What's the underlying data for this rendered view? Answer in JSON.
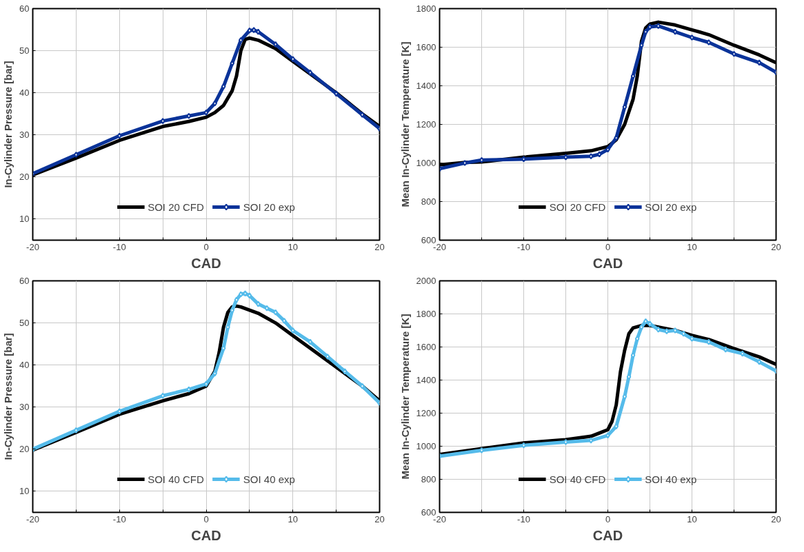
{
  "chart_data": [
    {
      "type": "line",
      "xlabel": "CAD",
      "ylabel": "In-Cylinder Pressure [bar]",
      "xlim": [
        -20,
        20
      ],
      "ylim": [
        5,
        60
      ],
      "xticks": [
        -20,
        {
          "value": -15,
          "label": null
        },
        -10,
        {
          "value": -5,
          "label": null
        },
        0,
        {
          "value": 5,
          "label": null
        },
        10,
        {
          "value": 15,
          "label": null
        },
        20
      ],
      "yticks": [
        10,
        20,
        30,
        40,
        50,
        60
      ],
      "grid": true,
      "legend": "bottom",
      "line_style": "solid",
      "series": [
        {
          "name": "SOI 20 CFD",
          "color": "#000000",
          "marker": "none",
          "x": [
            -20,
            -15,
            -10,
            -5,
            -2,
            0,
            1,
            2,
            3,
            3.5,
            4,
            4.5,
            5,
            6,
            8,
            10,
            12,
            15,
            18,
            20
          ],
          "values": [
            20.5,
            24.5,
            28.7,
            32,
            33.2,
            34.2,
            35.3,
            37,
            40.5,
            44,
            50,
            52.7,
            53,
            52.5,
            50.5,
            47.5,
            44.5,
            40,
            35,
            32
          ]
        },
        {
          "name": "SOI 20 exp",
          "color": "#0a3399",
          "marker": "diamond",
          "x": [
            -20,
            -15,
            -10,
            -5,
            -2,
            0,
            1,
            2,
            3,
            4,
            5,
            5.5,
            6,
            8,
            10,
            12,
            15,
            18,
            20
          ],
          "values": [
            20.8,
            25.3,
            29.8,
            33.3,
            34.5,
            35.3,
            37.5,
            41.5,
            47,
            52.5,
            54.8,
            54.9,
            54.5,
            51.5,
            48,
            44.8,
            39.8,
            34.8,
            31.5
          ]
        }
      ]
    },
    {
      "type": "line",
      "xlabel": "CAD",
      "ylabel": "Mean In-Cylinder Temperature [K]",
      "xlim": [
        -20,
        20
      ],
      "ylim": [
        600,
        1800
      ],
      "xticks": [
        -20,
        {
          "value": -15,
          "label": null
        },
        -10,
        {
          "value": -5,
          "label": null
        },
        0,
        {
          "value": 5,
          "label": null
        },
        10,
        {
          "value": 15,
          "label": null
        },
        20
      ],
      "yticks": [
        600,
        800,
        1000,
        1200,
        1400,
        1600,
        1800
      ],
      "grid": true,
      "legend": "bottom",
      "line_style": "solid",
      "series": [
        {
          "name": "SOI 20 CFD",
          "color": "#000000",
          "marker": "none",
          "x": [
            -20,
            -17,
            -15,
            -10,
            -5,
            -2,
            0,
            1,
            2,
            3,
            3.5,
            4,
            4.5,
            5,
            6,
            8,
            10,
            12,
            15,
            18,
            20
          ],
          "values": [
            990,
            1003,
            1005,
            1030,
            1050,
            1063,
            1085,
            1120,
            1200,
            1330,
            1450,
            1630,
            1700,
            1720,
            1730,
            1715,
            1690,
            1665,
            1610,
            1560,
            1520
          ]
        },
        {
          "name": "SOI 20 exp",
          "color": "#0a3399",
          "marker": "diamond",
          "x": [
            -20,
            -17,
            -15,
            -10,
            -5,
            -2,
            -1,
            0,
            1,
            2,
            3,
            4,
            4.5,
            5,
            6,
            8,
            10,
            12,
            15,
            18,
            20
          ],
          "values": [
            970,
            1000,
            1015,
            1020,
            1030,
            1035,
            1045,
            1070,
            1130,
            1290,
            1450,
            1610,
            1680,
            1705,
            1710,
            1680,
            1650,
            1625,
            1565,
            1520,
            1470
          ]
        }
      ]
    },
    {
      "type": "line",
      "xlabel": "CAD",
      "ylabel": "In-Cylinder Pressure [bar]",
      "xlim": [
        -20,
        20
      ],
      "ylim": [
        5,
        60
      ],
      "xticks": [
        -20,
        {
          "value": -15,
          "label": null
        },
        -10,
        {
          "value": -5,
          "label": null
        },
        0,
        {
          "value": 5,
          "label": null
        },
        10,
        {
          "value": 15,
          "label": null
        },
        20
      ],
      "yticks": [
        10,
        20,
        30,
        40,
        50,
        60
      ],
      "grid": true,
      "legend": "bottom",
      "line_style": "solid",
      "series": [
        {
          "name": "SOI 40 CFD",
          "color": "#000000",
          "marker": "none",
          "x": [
            -20,
            -15,
            -10,
            -5,
            -2,
            0,
            1,
            1.5,
            2,
            2.5,
            3,
            3.5,
            4,
            6,
            8,
            10,
            12,
            15,
            18,
            20
          ],
          "values": [
            19.8,
            24,
            28.3,
            31.5,
            33.2,
            35,
            38.5,
            43,
            49,
            52.5,
            53.8,
            54,
            53.8,
            52.3,
            50,
            47,
            44,
            39.5,
            35,
            31.5
          ]
        },
        {
          "name": "SOI 40 exp",
          "color": "#55bbea",
          "marker": "diamond",
          "x": [
            -20,
            -15,
            -10,
            -5,
            -2,
            0,
            1,
            2,
            2.5,
            3,
            3.5,
            4,
            4.5,
            5,
            6,
            7,
            8,
            9,
            10,
            12,
            14,
            16,
            18,
            20
          ],
          "values": [
            20,
            24.5,
            29,
            32.7,
            34.2,
            35.5,
            38,
            44,
            49,
            53,
            55.5,
            56.8,
            57,
            56.5,
            54.5,
            53.5,
            52.5,
            50.5,
            48.2,
            45.5,
            42,
            38.5,
            35,
            31
          ]
        }
      ]
    },
    {
      "type": "line",
      "xlabel": "CAD",
      "ylabel": "Mean In-Cylinder Temperature [K]",
      "xlim": [
        -20,
        20
      ],
      "ylim": [
        600,
        2000
      ],
      "xticks": [
        -20,
        {
          "value": -15,
          "label": null
        },
        -10,
        {
          "value": -5,
          "label": null
        },
        0,
        {
          "value": 5,
          "label": null
        },
        10,
        {
          "value": 15,
          "label": null
        },
        20
      ],
      "yticks": [
        600,
        800,
        1000,
        1200,
        1400,
        1600,
        1800,
        2000
      ],
      "grid": true,
      "legend": "bottom",
      "line_style": "solid",
      "series": [
        {
          "name": "SOI 40 CFD",
          "color": "#000000",
          "marker": "none",
          "x": [
            -20,
            -15,
            -10,
            -5,
            -2,
            -1,
            0,
            0.5,
            1,
            1.5,
            2,
            2.5,
            3,
            4,
            5,
            8,
            10,
            12,
            15,
            18,
            20
          ],
          "values": [
            950,
            985,
            1020,
            1040,
            1060,
            1080,
            1100,
            1150,
            1250,
            1450,
            1580,
            1680,
            1715,
            1730,
            1730,
            1700,
            1670,
            1645,
            1590,
            1540,
            1495
          ]
        },
        {
          "name": "SOI 40 exp",
          "color": "#55bbea",
          "marker": "diamond",
          "x": [
            -20,
            -15,
            -10,
            -5,
            -2,
            0,
            1,
            2,
            2.5,
            3,
            3.5,
            4,
            4.5,
            5,
            6,
            7,
            8,
            9,
            10,
            12,
            14,
            16,
            18,
            20
          ],
          "values": [
            940,
            975,
            1005,
            1025,
            1035,
            1065,
            1120,
            1300,
            1420,
            1550,
            1650,
            1720,
            1755,
            1740,
            1705,
            1695,
            1700,
            1680,
            1650,
            1630,
            1585,
            1560,
            1510,
            1455
          ]
        }
      ]
    }
  ]
}
